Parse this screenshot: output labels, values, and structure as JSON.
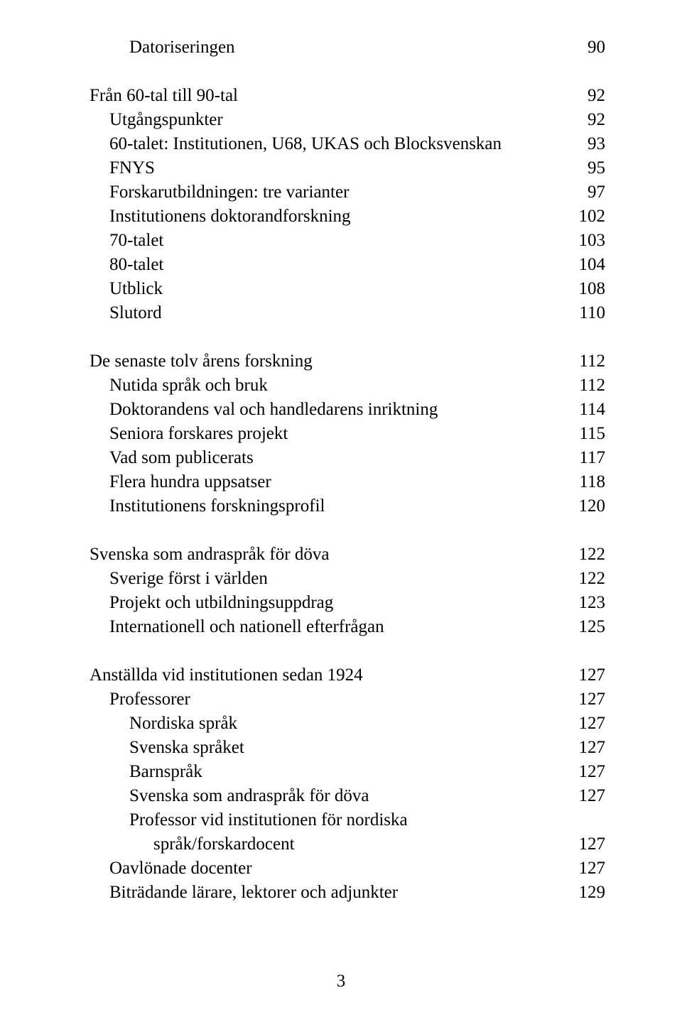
{
  "pageNumber": "3",
  "font": {
    "family": "Times New Roman",
    "size_pt": 25,
    "color": "#000000"
  },
  "background_color": "#ffffff",
  "entries": [
    {
      "label": "Datoriseringen",
      "page": "90",
      "indent": 2,
      "spaceAfter": true
    },
    {
      "label": "Från 60-tal till 90-tal",
      "page": "92",
      "indent": 0
    },
    {
      "label": "Utgångspunkter",
      "page": "92",
      "indent": 1
    },
    {
      "label": "60-talet: Institutionen, U68, UKAS och Blocksvenskan",
      "page": "93",
      "indent": 1
    },
    {
      "label": "FNYS",
      "page": "95",
      "indent": 1
    },
    {
      "label": "Forskarutbildningen: tre varianter",
      "page": "97",
      "indent": 1
    },
    {
      "label": "Institutionens doktorandforskning",
      "page": "102",
      "indent": 1
    },
    {
      "label": "70-talet",
      "page": "103",
      "indent": 1
    },
    {
      "label": "80-talet",
      "page": "104",
      "indent": 1
    },
    {
      "label": "Utblick",
      "page": "108",
      "indent": 1
    },
    {
      "label": "Slutord",
      "page": "110",
      "indent": 1,
      "spaceAfter": true
    },
    {
      "label": "De senaste tolv årens forskning",
      "page": "112",
      "indent": 0
    },
    {
      "label": "Nutida språk och bruk",
      "page": "112",
      "indent": 1
    },
    {
      "label": "Doktorandens val och handledarens inriktning",
      "page": "114",
      "indent": 1
    },
    {
      "label": "Seniora forskares projekt",
      "page": "115",
      "indent": 1
    },
    {
      "label": "Vad som publicerats",
      "page": "117",
      "indent": 1
    },
    {
      "label": "Flera hundra uppsatser",
      "page": "118",
      "indent": 1
    },
    {
      "label": "Institutionens forskningsprofil",
      "page": "120",
      "indent": 1,
      "spaceAfter": true
    },
    {
      "label": "Svenska som andraspråk för döva",
      "page": "122",
      "indent": 0
    },
    {
      "label": "Sverige först i världen",
      "page": "122",
      "indent": 1
    },
    {
      "label": "Projekt och utbildningsuppdrag",
      "page": "123",
      "indent": 1
    },
    {
      "label": "Internationell och nationell efterfrågan",
      "page": "125",
      "indent": 1,
      "spaceAfter": true
    },
    {
      "label": "Anställda vid institutionen sedan 1924",
      "page": "127",
      "indent": 0
    },
    {
      "label": "Professorer",
      "page": "127",
      "indent": 1
    },
    {
      "label": "Nordiska språk",
      "page": "127",
      "indent": 2
    },
    {
      "label": "Svenska språket",
      "page": "127",
      "indent": 2
    },
    {
      "label": "Barnspråk",
      "page": "127",
      "indent": 2
    },
    {
      "label": "Svenska som andraspråk för döva",
      "page": "127",
      "indent": 2
    },
    {
      "label": "Professor vid institutionen för nordiska",
      "wrapSecond": "språk/forskardocent",
      "page": "127",
      "indent": 2,
      "wrap": true
    },
    {
      "label": "Oavlönade docenter",
      "page": "127",
      "indent": 1
    },
    {
      "label": "Biträdande lärare, lektorer och adjunkter",
      "page": "129",
      "indent": 1
    }
  ]
}
